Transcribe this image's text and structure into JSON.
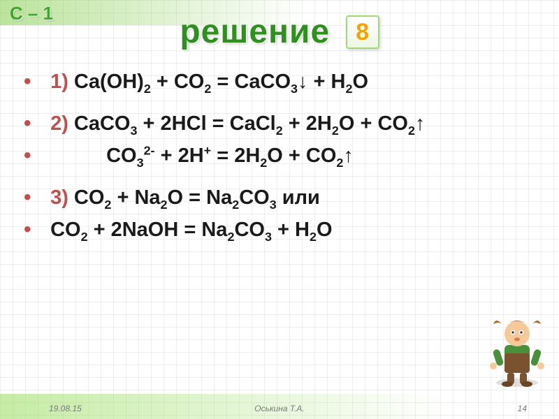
{
  "header": {
    "corner_label": "С – 1",
    "title": "решение",
    "step_number": "8"
  },
  "equations": {
    "e1": {
      "num": "1)",
      "html": "Ca(OH)<sub>2</sub> + CO<sub>2</sub> = CaCO<sub>3</sub>↓ + H<sub>2</sub>O"
    },
    "e2": {
      "num": "2)",
      "html": "CaCO<sub>3</sub> + 2HCl = CaCl<sub>2</sub> + 2H<sub>2</sub>O + CO<sub>2</sub>↑"
    },
    "e2i": {
      "html": "CO<sub>3</sub><sup>2-</sup> + 2H<sup>+</sup> =  2H<sub>2</sub>O + CO<sub>2</sub>↑"
    },
    "e3": {
      "num": "3)",
      "html": "CO<sub>2</sub> + Na<sub>2</sub>O = Na<sub>2</sub>CO<sub>3</sub>   или"
    },
    "e3b": {
      "html": "CO<sub>2</sub> + 2NaOH = Na<sub>2</sub>CO<sub>3</sub> + H<sub>2</sub>O"
    }
  },
  "footer": {
    "date": "19.08.15",
    "author": "Оськина Т.А.",
    "page": "14"
  },
  "colors": {
    "title_color": "#2f8f1f",
    "accent_color": "#c0504d",
    "text_color": "#1a1a1a",
    "badge_color": "#f4a300",
    "grid_color": "#d9d9d9",
    "background": "#ffffff"
  },
  "typography": {
    "title_fontsize": 48,
    "equation_fontsize": 29,
    "footer_fontsize": 12,
    "font_family": "Arial"
  }
}
